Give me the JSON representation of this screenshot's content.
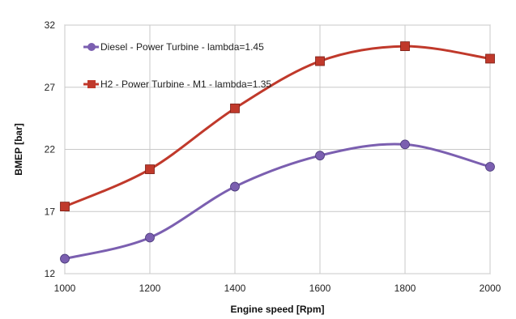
{
  "chart_data": {
    "type": "line",
    "x": [
      1000,
      1200,
      1400,
      1600,
      1800,
      2000
    ],
    "xlabel": "Engine speed [Rpm]",
    "ylabel": "BMEP [bar]",
    "xlim": [
      1000,
      2000
    ],
    "ylim": [
      12,
      32
    ],
    "xticks": [
      1000,
      1200,
      1400,
      1600,
      1800,
      2000
    ],
    "yticks": [
      12,
      17,
      22,
      27,
      32
    ],
    "grid": true,
    "legend_position": "top-left",
    "series": [
      {
        "name": "Diesel - Power Turbine - lambda=1.45",
        "values": [
          13.2,
          14.9,
          19.0,
          21.5,
          22.4,
          20.6
        ],
        "color": "#7B5FB0",
        "marker": "circle"
      },
      {
        "name": "H2 - Power Turbine - M1 - lambda=1.35",
        "values": [
          17.4,
          20.4,
          25.3,
          29.1,
          30.3,
          29.3
        ],
        "color": "#C0392B",
        "marker": "square"
      }
    ]
  }
}
